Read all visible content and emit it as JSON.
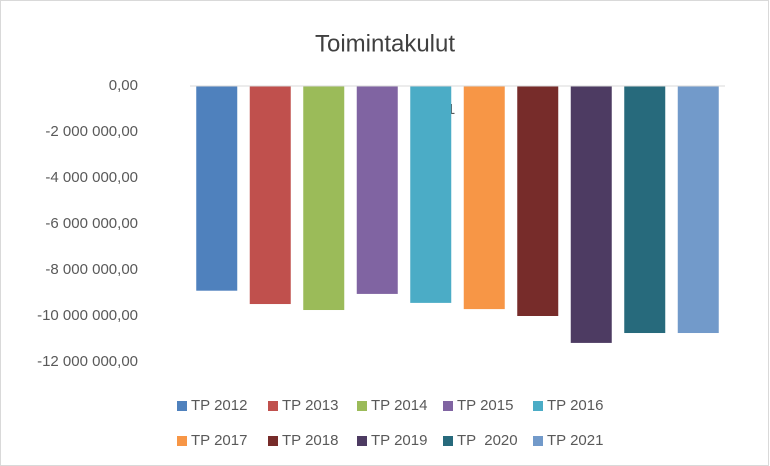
{
  "chart_data": {
    "type": "bar",
    "title": "Toimintakulut",
    "categories": [
      null
    ],
    "series": [
      {
        "name": "TP 2012",
        "color": "#4f81bd",
        "values": [
          -8900000
        ]
      },
      {
        "name": "TP 2013",
        "color": "#c0504d",
        "values": [
          -9480000
        ]
      },
      {
        "name": "TP 2014",
        "color": "#9bbb59",
        "values": [
          -9740000
        ]
      },
      {
        "name": "TP 2015",
        "color": "#8064a2",
        "values": [
          -9040000
        ]
      },
      {
        "name": "TP 2016",
        "color": "#4bacc6",
        "values": [
          -9430000
        ]
      },
      {
        "name": "TP 2017",
        "color": "#f79646",
        "values": [
          -9700000
        ]
      },
      {
        "name": "TP 2018",
        "color": "#772c2a",
        "values": [
          -10000000
        ]
      },
      {
        "name": "TP 2019",
        "color": "#4d3b62",
        "values": [
          -11170000
        ]
      },
      {
        "name": "TP  2020",
        "color": "#276a7c",
        "values": [
          -10740000
        ]
      },
      {
        "name": "TP 2021",
        "color": "#729aca",
        "values": [
          -10740000
        ]
      }
    ],
    "ylim": [
      -12000000,
      0
    ],
    "yticks": [
      {
        "value": 0,
        "label": "0,00"
      },
      {
        "value": -2000000,
        "label": "-2 000 000,00"
      },
      {
        "value": -4000000,
        "label": "-4 000 000,00"
      },
      {
        "value": -6000000,
        "label": "-6 000 000,00"
      },
      {
        "value": -8000000,
        "label": "-8 000 000,00"
      },
      {
        "value": -10000000,
        "label": "-10 000 000,00"
      },
      {
        "value": -12000000,
        "label": "-12 000 000,00"
      }
    ],
    "grid": false,
    "annotations": [
      {
        "text": "1"
      }
    ]
  }
}
